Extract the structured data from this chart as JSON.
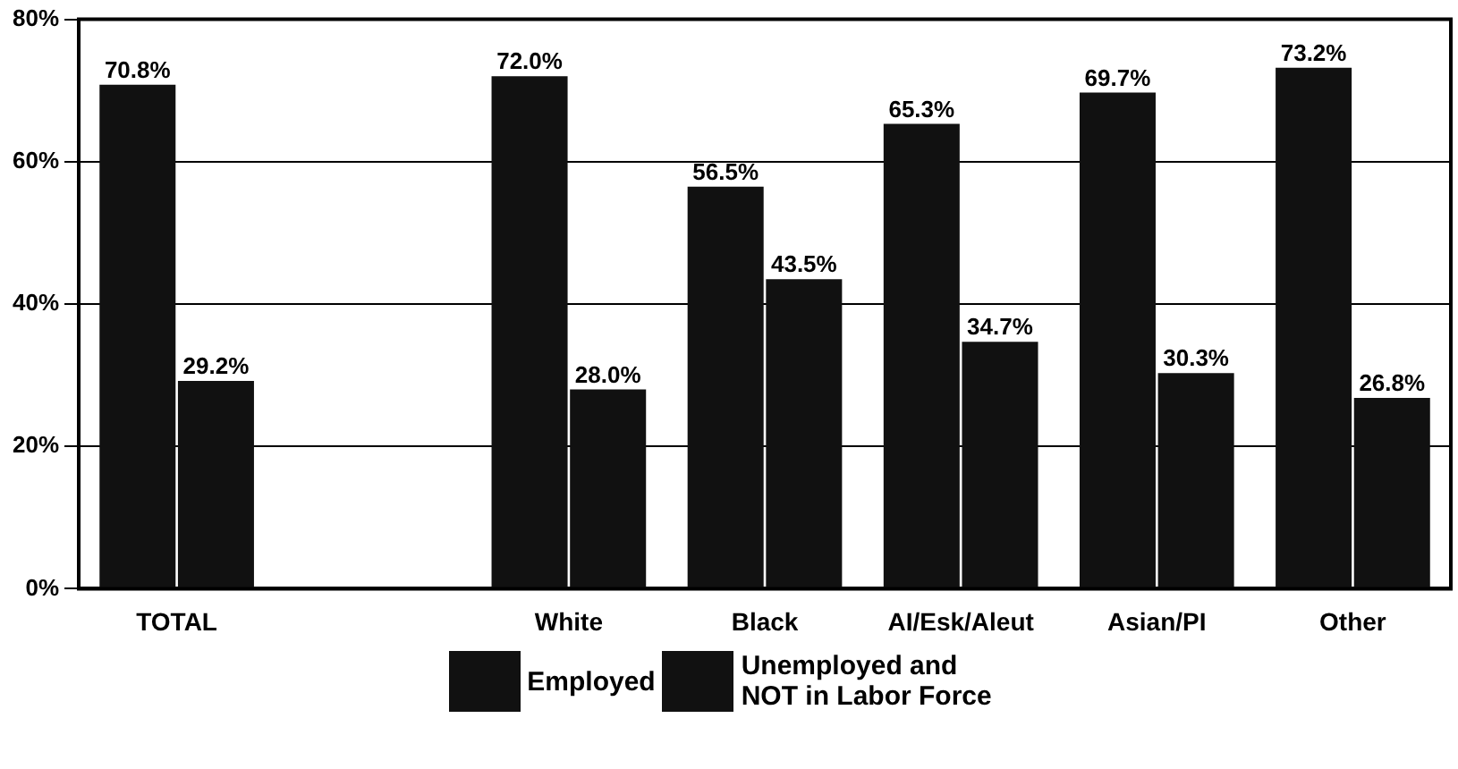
{
  "chart_data": {
    "type": "bar",
    "categories": [
      "TOTAL",
      null,
      "White",
      "Black",
      "AI/Esk/Aleut",
      "Asian/PI",
      "Other"
    ],
    "series": [
      {
        "name": "Employed",
        "color": "#111111",
        "values": [
          70.8,
          null,
          72.0,
          56.5,
          65.3,
          69.7,
          73.2
        ],
        "value_labels": [
          "70.8%",
          null,
          "72.0%",
          "56.5%",
          "65.3%",
          "69.7%",
          "73.2%"
        ]
      },
      {
        "name": "Unemployed and NOT in Labor Force",
        "color": "#111111",
        "values": [
          29.2,
          null,
          28.0,
          43.5,
          34.7,
          30.3,
          26.8
        ],
        "value_labels": [
          "29.2%",
          null,
          "28.0%",
          "43.5%",
          "34.7%",
          "30.3%",
          "26.8%"
        ]
      }
    ],
    "ylim": [
      0,
      80
    ],
    "yticks": [
      {
        "value": 0,
        "label": "0%"
      },
      {
        "value": 20,
        "label": "20%"
      },
      {
        "value": 40,
        "label": "40%"
      },
      {
        "value": 60,
        "label": "60%"
      },
      {
        "value": 80,
        "label": "80%"
      }
    ],
    "grid": "y",
    "legend": "bottom"
  }
}
